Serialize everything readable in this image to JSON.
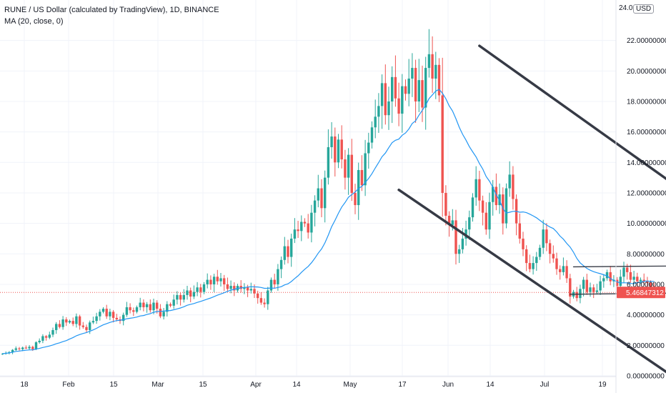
{
  "legend": {
    "title": "RUNE / US Dollar (calculated by TradingView), 1D, BINANCE",
    "indicator": "MA (20, close, 0)"
  },
  "axis": {
    "top_label": "24.0",
    "currency": "USD",
    "current_price": "5.46847312"
  },
  "chart_data": {
    "type": "candlestick",
    "title": "RUNE / US Dollar (calculated by TradingView), 1D, BINANCE",
    "ylim": [
      -0.8,
      24.0
    ],
    "y_ticks": [
      "0.00000000",
      "2.00000000",
      "4.00000000",
      "6.00000000",
      "8.00000000",
      "10.00000000",
      "12.00000000",
      "14.00000000",
      "16.00000000",
      "18.00000000",
      "20.00000000",
      "22.00000000"
    ],
    "x_ticks": [
      "18",
      "Feb",
      "15",
      "Mar",
      "15",
      "Apr",
      "14",
      "May",
      "17",
      "Jun",
      "14",
      "Jul",
      "19"
    ],
    "current_price": 5.46847312,
    "colors": {
      "up": "#26a69a",
      "down": "#ef5350",
      "ma": "#2196f3",
      "trend": "#363a45",
      "price_line": "#ef5350"
    },
    "close": [
      1.45,
      1.5,
      1.55,
      1.7,
      1.8,
      1.75,
      1.85,
      1.8,
      1.9,
      1.75,
      2.2,
      2.3,
      2.6,
      2.5,
      2.7,
      3.0,
      3.4,
      3.2,
      3.7,
      3.5,
      3.6,
      3.4,
      3.9,
      3.3,
      3.2,
      3.0,
      3.5,
      3.6,
      3.9,
      4.2,
      4.4,
      3.9,
      4.2,
      3.8,
      3.7,
      3.6,
      4.0,
      4.5,
      4.3,
      4.2,
      4.5,
      4.8,
      4.5,
      4.7,
      4.3,
      4.8,
      4.4,
      3.9,
      4.2,
      4.7,
      4.6,
      5.0,
      5.3,
      5.0,
      5.3,
      5.6,
      5.2,
      5.5,
      5.8,
      5.5,
      6.0,
      6.3,
      6.0,
      6.5,
      6.2,
      6.4,
      6.0,
      5.7,
      5.9,
      5.6,
      5.9,
      5.7,
      5.8,
      5.6,
      5.7,
      5.4,
      5.1,
      4.8,
      4.7,
      5.6,
      6.3,
      6.0,
      7.0,
      7.6,
      8.5,
      7.8,
      9.0,
      9.6,
      9.5,
      10.1,
      10.0,
      9.4,
      10.7,
      11.5,
      12.3,
      11.0,
      13.0,
      15.0,
      15.7,
      14.0,
      15.5,
      14.2,
      13.0,
      14.5,
      12.0,
      11.2,
      13.5,
      12.5,
      14.6,
      15.3,
      16.3,
      17.0,
      17.7,
      19.2,
      17.1,
      18.0,
      19.6,
      18.2,
      17.2,
      19.0,
      18.5,
      19.5,
      20.2,
      18.0,
      19.4,
      17.6,
      20.2,
      21.1,
      19.5,
      20.4,
      18.4,
      12.0,
      10.5,
      9.9,
      10.2,
      8.0,
      8.3,
      9.0,
      9.6,
      10.4,
      11.7,
      12.9,
      11.5,
      10.7,
      9.6,
      11.4,
      12.4,
      11.2,
      11.9,
      10.0,
      12.3,
      13.2,
      11.6,
      10.0,
      9.0,
      8.3,
      7.4,
      7.0,
      7.4,
      7.8,
      8.4,
      9.6,
      8.7,
      8.0,
      7.7,
      7.0,
      6.8,
      7.2,
      6.4,
      5.2,
      5.5,
      5.1,
      5.7,
      6.3,
      5.5,
      5.8,
      5.5,
      5.6,
      6.2,
      6.4,
      6.8,
      6.2,
      6.3,
      5.9,
      6.5,
      7.1,
      6.8,
      6.3,
      6.5,
      6.2,
      6.3,
      6.2,
      6.1,
      5.7,
      5.47
    ],
    "ma20_start_index": 19,
    "trendlines": [
      {
        "from": [
          142,
          21.65
        ],
        "to": [
          219,
          9.57
        ]
      },
      {
        "from": [
          118,
          12.2
        ],
        "to": [
          200,
          -0.1
        ]
      },
      {
        "from": [
          170,
          7.15
        ],
        "to": [
          214,
          7.23
        ]
      },
      {
        "from": [
          169,
          5.35
        ],
        "to": [
          214,
          5.46
        ]
      }
    ]
  }
}
